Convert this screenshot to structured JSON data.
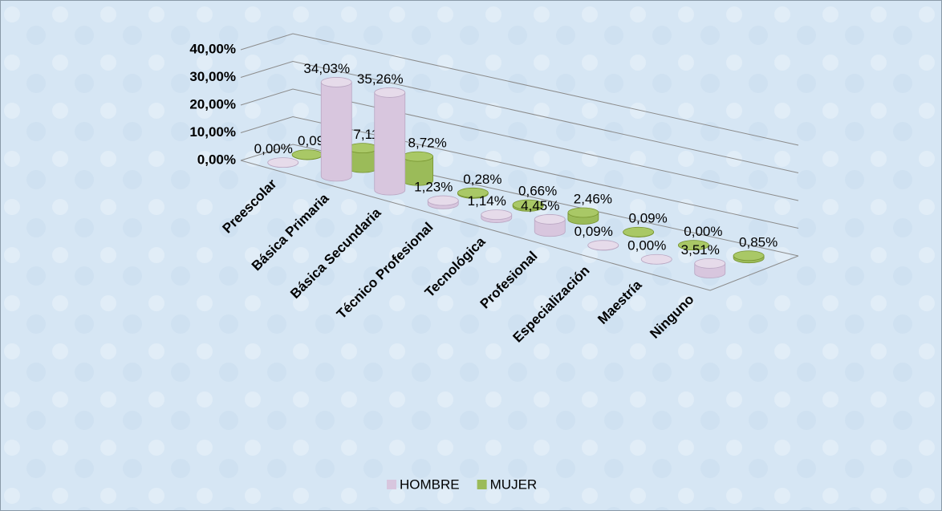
{
  "chart_data": {
    "type": "bar3d",
    "categories": [
      "Preescolar",
      "Básica Primaria",
      "Básica Secundaria",
      "Técnico Profesional",
      "Tecnológica",
      "Profesional",
      "Especialización",
      "Maestría",
      "Ninguno"
    ],
    "series": [
      {
        "name": "HOMBRE",
        "color": "#d8c6de",
        "values": [
          0,
          34.03,
          35.26,
          1.23,
          1.14,
          4.45,
          0.09,
          0,
          3.51
        ],
        "value_labels": [
          "0,00%",
          "34,03%",
          "35,26%",
          "1,23%",
          "1,14%",
          "4,45%",
          "0,09%",
          "0,00%",
          "3,51%"
        ]
      },
      {
        "name": "MUJER",
        "color": "#9bbb59",
        "values": [
          0.09,
          7.11,
          8.72,
          0.28,
          0.66,
          2.46,
          0.09,
          0,
          0.85
        ],
        "value_labels": [
          "0,09%",
          "7,11%",
          "8,72%",
          "0,28%",
          "0,66%",
          "2,46%",
          "0,09%",
          "0,00%",
          "0,85%"
        ]
      }
    ],
    "ylim": [
      0,
      40
    ],
    "yticks": [
      {
        "value": 0,
        "label": "0,00%"
      },
      {
        "value": 10,
        "label": "10,00%"
      },
      {
        "value": 20,
        "label": "20,00%"
      },
      {
        "value": 30,
        "label": "30,00%"
      },
      {
        "value": 40,
        "label": "40,00%"
      }
    ],
    "grid": true,
    "legend": "bottom"
  }
}
